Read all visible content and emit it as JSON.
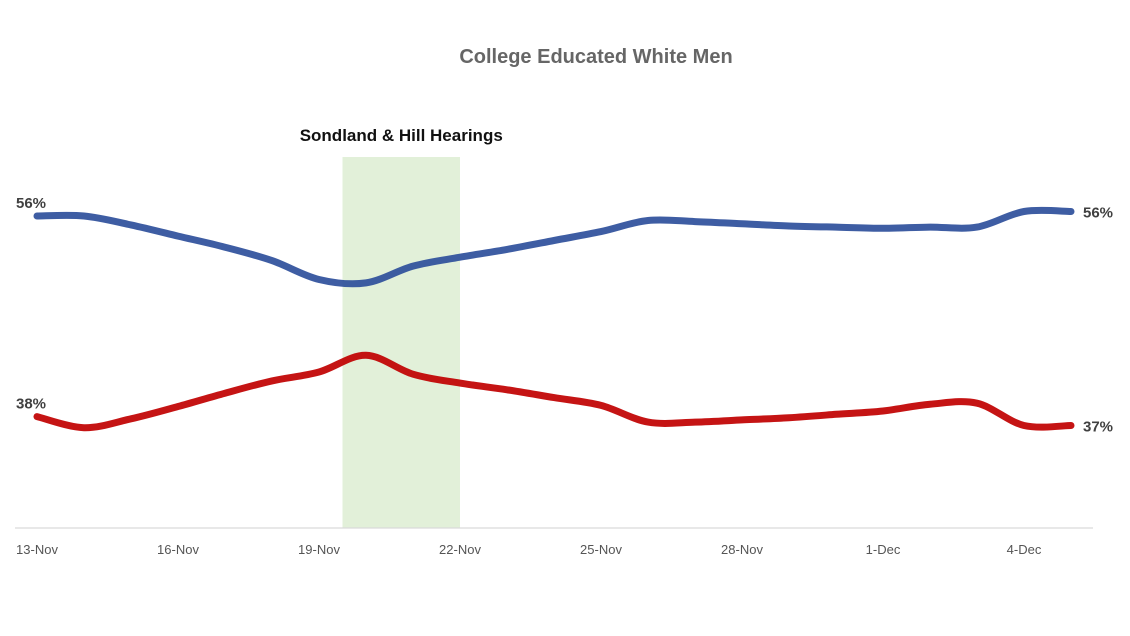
{
  "chart_data": {
    "type": "line",
    "title": "College Educated White Men",
    "xlabel": "",
    "ylabel": "",
    "x": [
      "13-Nov",
      "14-Nov",
      "15-Nov",
      "16-Nov",
      "17-Nov",
      "18-Nov",
      "19-Nov",
      "20-Nov",
      "21-Nov",
      "22-Nov",
      "23-Nov",
      "24-Nov",
      "25-Nov",
      "26-Nov",
      "27-Nov",
      "28-Nov",
      "29-Nov",
      "30-Nov",
      "1-Dec",
      "2-Dec",
      "3-Dec",
      "4-Dec",
      "5-Dec"
    ],
    "x_tick_labels": [
      "13-Nov",
      "16-Nov",
      "19-Nov",
      "22-Nov",
      "25-Nov",
      "28-Nov",
      "1-Dec",
      "4-Dec"
    ],
    "ylim": [
      28,
      70
    ],
    "grid": false,
    "series": [
      {
        "color": "#2E4F9B",
        "values": [
          56,
          56,
          55.2,
          54.2,
          53.2,
          52,
          50.3,
          50,
          51.5,
          52.3,
          53,
          53.8,
          54.6,
          55.6,
          55.5,
          55.3,
          55.1,
          55,
          54.9,
          55,
          55,
          56.4,
          56.4
        ],
        "start_label": "56%",
        "end_label": "56%"
      },
      {
        "color": "#C00000",
        "values": [
          38,
          37,
          37.8,
          38.9,
          40.1,
          41.2,
          42,
          43.5,
          41.8,
          41,
          40.4,
          39.7,
          39,
          37.5,
          37.5,
          37.7,
          37.9,
          38.2,
          38.5,
          39.1,
          39.2,
          37.2,
          37.2
        ],
        "start_label": "38%",
        "end_label": "37%"
      }
    ],
    "annotations": [
      {
        "text": "Sondland & Hill Hearings",
        "x_start": "20-Nov",
        "x_end": "22-Nov",
        "color": "#E2F0D9"
      }
    ]
  }
}
